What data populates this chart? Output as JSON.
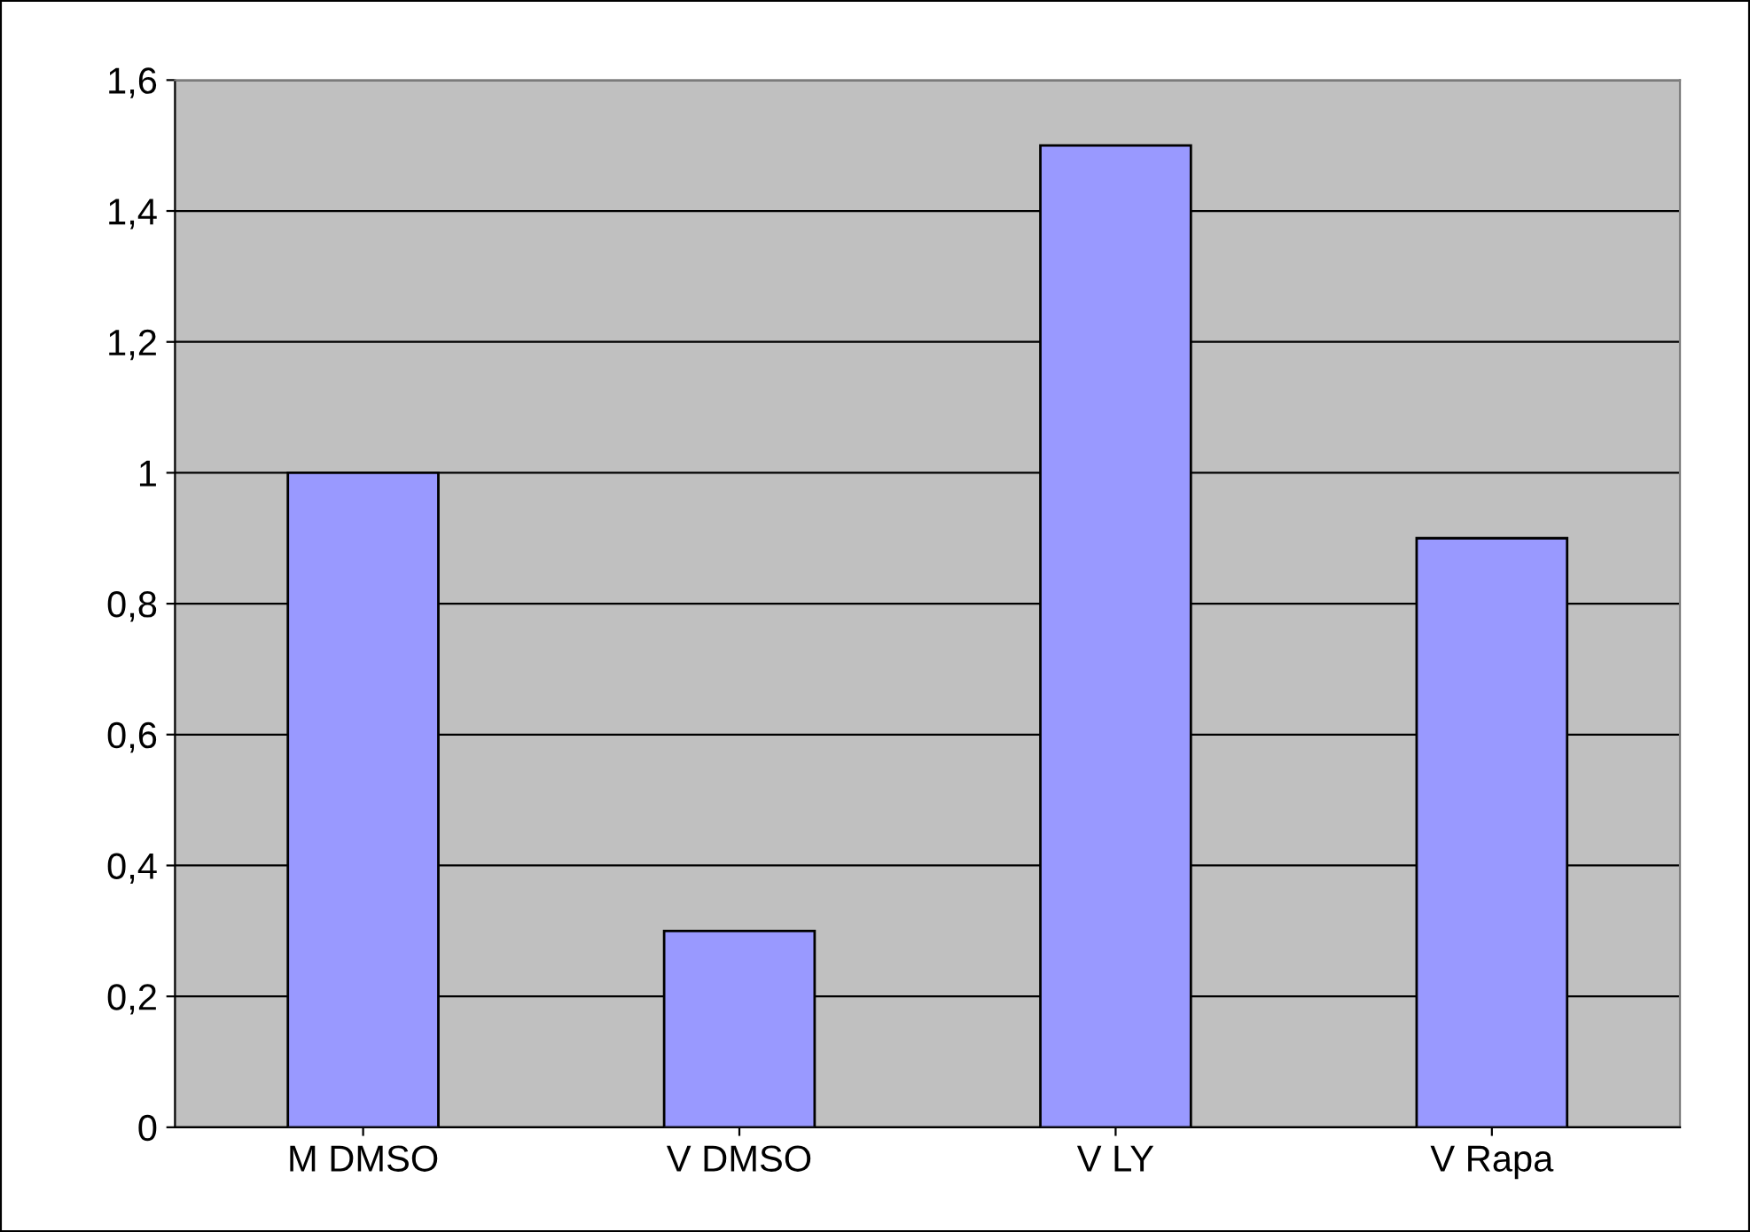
{
  "chart_data": {
    "type": "bar",
    "categories": [
      "M DMSO",
      "V DMSO",
      "V LY",
      "V Rapa"
    ],
    "values": [
      1.0,
      0.3,
      1.5,
      0.9
    ],
    "color": "#9999ff",
    "ylim": [
      0,
      1.6
    ],
    "yticks": [
      0,
      {
        "value": 0.2,
        "label": "0,2"
      },
      {
        "value": 0.4,
        "label": "0,4"
      },
      {
        "value": 0.6,
        "label": "0,6"
      },
      {
        "value": 0.8,
        "label": "0,8"
      },
      1,
      {
        "value": 1.2,
        "label": "1,2"
      },
      {
        "value": 1.4,
        "label": "1,4"
      },
      {
        "value": 1.6,
        "label": "1,6"
      }
    ],
    "grid": "y",
    "legend": false
  }
}
